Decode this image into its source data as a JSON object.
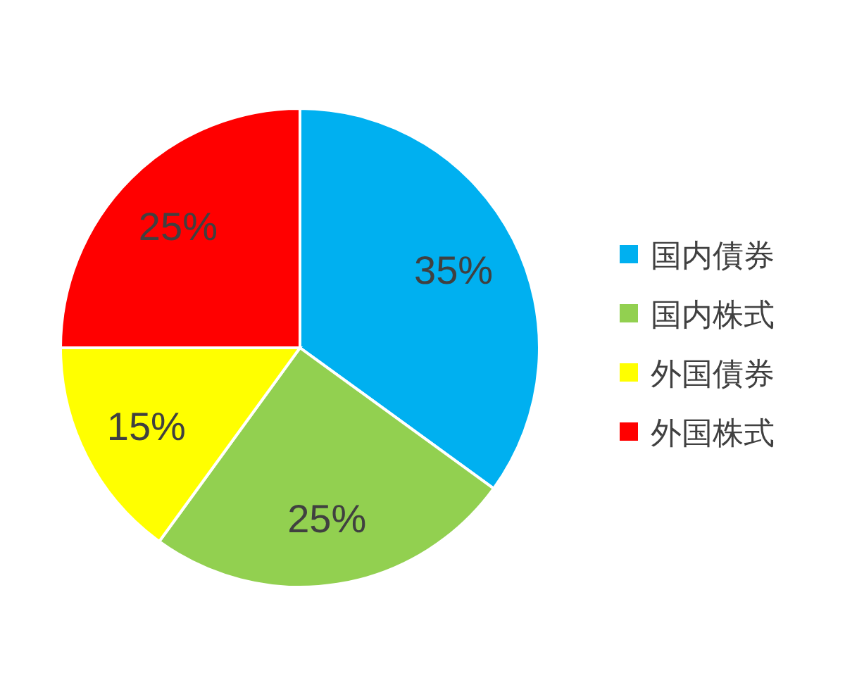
{
  "chart_data": {
    "type": "pie",
    "categories": [
      "国内債券",
      "国内株式",
      "外国債券",
      "外国株式"
    ],
    "values": [
      35,
      25,
      15,
      25
    ],
    "colors": [
      "#00b0f0",
      "#92d050",
      "#ffff00",
      "#ff0000"
    ],
    "value_labels": [
      "35%",
      "25%",
      "15%",
      "25%"
    ],
    "legend": "right"
  }
}
